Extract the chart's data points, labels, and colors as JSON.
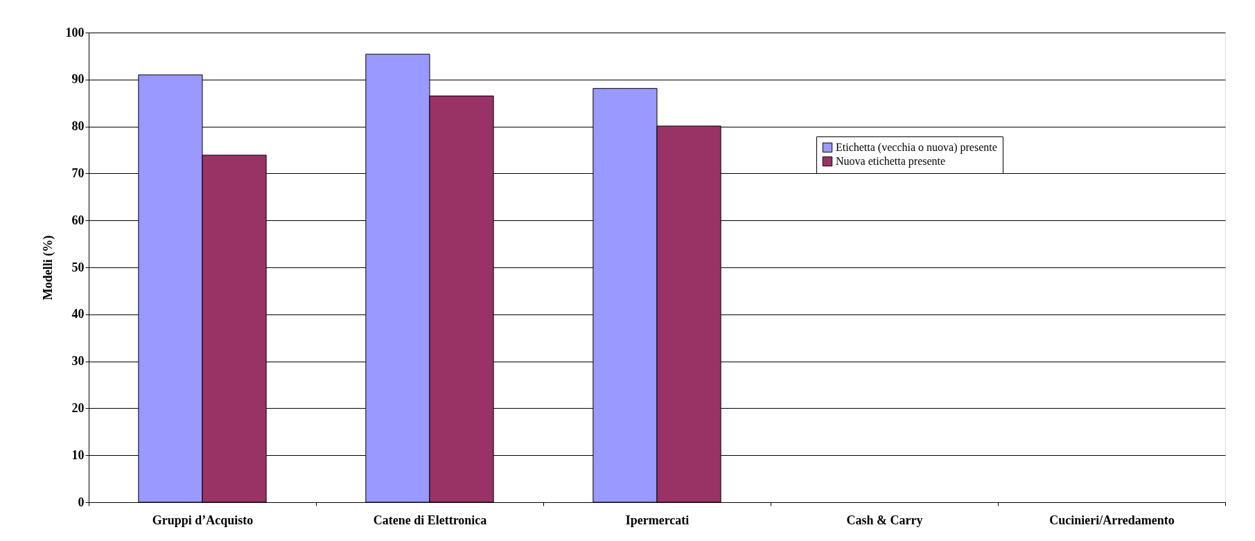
{
  "chart_data": {
    "type": "bar",
    "ylabel": "Modelli (%)",
    "categories": [
      "Gruppi d’Acquisto",
      "Catene di Elettronica",
      "Ipermercati",
      "Cash & Carry",
      "Cucinieri/Arredamento"
    ],
    "series": [
      {
        "name": "Etichetta (vecchia o nuova) presente",
        "color": "#9999ff",
        "values": [
          91.0,
          95.4,
          88.1,
          null,
          null
        ]
      },
      {
        "name": "Nuova etichetta presente",
        "color": "#993366",
        "values": [
          73.9,
          86.5,
          80.1,
          null,
          null
        ]
      }
    ],
    "ylim": [
      0,
      100
    ],
    "yticks": [
      0,
      10,
      20,
      30,
      40,
      50,
      60,
      70,
      80,
      90,
      100
    ],
    "grid": "y",
    "legend": "top right"
  }
}
